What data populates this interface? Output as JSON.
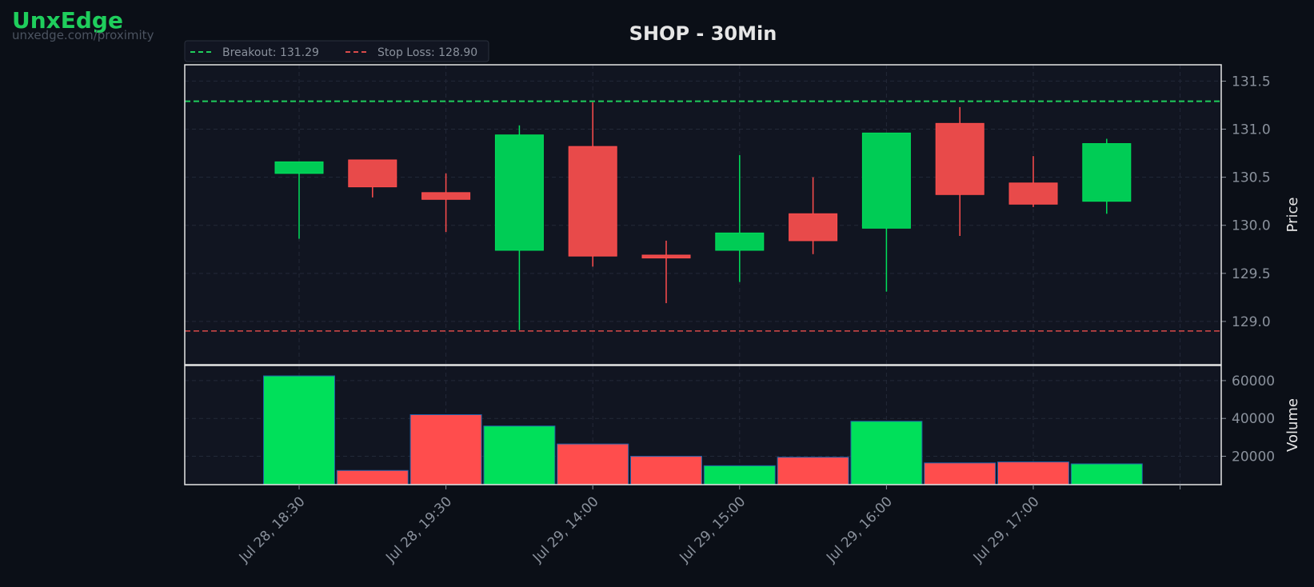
{
  "brand": {
    "title": "UnxEdge",
    "subtitle": "unxedge.com/proximity"
  },
  "colors": {
    "background": "#0b0f17",
    "plot_background": "#111521",
    "up": "#00cc55",
    "down": "#e84a4a",
    "volume_up": "#00e05a",
    "volume_down": "#ff4d4d",
    "breakout_line": "#1fce5c",
    "stop_loss_line": "#d94a4a",
    "grid": "#232938",
    "frame": "#e6e6e6"
  },
  "chart_data": {
    "type": "candlestick",
    "title": "SHOP - 30Min",
    "x_labels": [
      "",
      "",
      "",
      "",
      "",
      "",
      "",
      "",
      "",
      "",
      "",
      ""
    ],
    "x_tick_labels": [
      "Jul 28, 18:30",
      "Jul 28, 19:30",
      "Jul 29, 14:00",
      "Jul 29, 15:00",
      "Jul 29, 16:00",
      "Jul 29, 17:00"
    ],
    "candles": [
      {
        "open": 130.54,
        "high": 130.66,
        "low": 129.86,
        "close": 130.66
      },
      {
        "open": 130.68,
        "high": 130.68,
        "low": 130.29,
        "close": 130.4
      },
      {
        "open": 130.34,
        "high": 130.54,
        "low": 129.93,
        "close": 130.27
      },
      {
        "open": 129.74,
        "high": 131.04,
        "low": 128.91,
        "close": 130.94
      },
      {
        "open": 130.82,
        "high": 131.28,
        "low": 129.57,
        "close": 129.68
      },
      {
        "open": 129.69,
        "high": 129.84,
        "low": 129.19,
        "close": 129.66
      },
      {
        "open": 129.74,
        "high": 130.73,
        "low": 129.41,
        "close": 129.92
      },
      {
        "open": 130.12,
        "high": 130.5,
        "low": 129.7,
        "close": 129.84
      },
      {
        "open": 129.97,
        "high": 130.96,
        "low": 129.31,
        "close": 130.96
      },
      {
        "open": 131.06,
        "high": 131.23,
        "low": 129.89,
        "close": 130.32
      },
      {
        "open": 130.44,
        "high": 130.72,
        "low": 130.19,
        "close": 130.22
      },
      {
        "open": 130.25,
        "high": 130.9,
        "low": 130.12,
        "close": 130.85
      }
    ],
    "volume": [
      62500,
      12500,
      42000,
      36000,
      26500,
      20000,
      15000,
      19500,
      38500,
      16500,
      17000,
      16000
    ],
    "levels": {
      "breakout": 131.29,
      "stop_loss": 128.9
    },
    "legend": [
      {
        "label": "Breakout: 131.29",
        "color": "#1fce5c"
      },
      {
        "label": "Stop Loss: 128.90",
        "color": "#d94a4a"
      }
    ],
    "price_axis": {
      "label": "Price",
      "ylim": [
        128.55,
        131.67
      ],
      "ticks": [
        129.0,
        129.5,
        130.0,
        130.5,
        131.0,
        131.5
      ],
      "tick_labels": [
        "129.0",
        "129.5",
        "130.0",
        "130.5",
        "131.0",
        "131.5"
      ]
    },
    "volume_axis": {
      "label": "Volume",
      "ylim": [
        5000,
        68000
      ],
      "ticks": [
        20000,
        40000,
        60000
      ],
      "tick_labels": [
        "20000",
        "40000",
        "60000"
      ]
    },
    "grid": true,
    "legend_placement": "top-left"
  }
}
